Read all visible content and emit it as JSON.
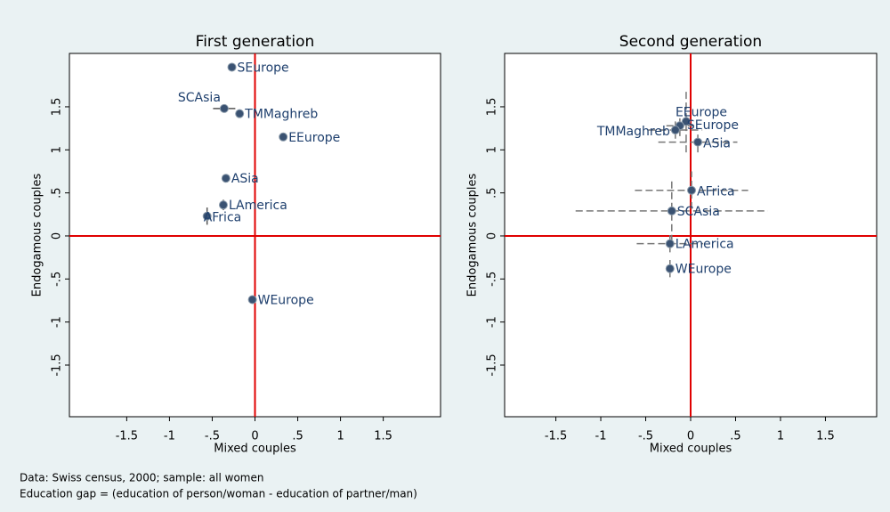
{
  "chart_data": [
    {
      "type": "scatter",
      "title": "First generation",
      "xlabel": "Mixed couples",
      "ylabel": "Endogamous couples",
      "xlim": [
        -2.17,
        2.17
      ],
      "ylim": [
        -2.1,
        2.12
      ],
      "xticks": [
        -1.5,
        -1,
        {
          "value": -0.5,
          "label": "-.5"
        },
        0,
        {
          "value": 0.5,
          "label": ".5"
        },
        1,
        1.5
      ],
      "yticks": [
        -1.5,
        -1,
        {
          "value": -0.5,
          "label": "-.5"
        },
        0,
        {
          "value": 0.5,
          "label": ".5"
        },
        1,
        1.5
      ],
      "reference_lines": {
        "x": 0,
        "y": 0,
        "color": "#e00000"
      },
      "series": [
        {
          "name": null,
          "color": "#3a5272",
          "labels": [
            "SEurope",
            "SCAsia",
            "TMMaghreb",
            "EEurope",
            "ASia",
            "LAmerica",
            "AFrica",
            "WEurope"
          ],
          "x": [
            -0.27,
            -0.36,
            -0.18,
            0.33,
            -0.34,
            -0.37,
            -0.56,
            -0.03
          ],
          "values": [
            1.96,
            1.48,
            1.42,
            1.15,
            0.67,
            0.36,
            0.23,
            -0.74
          ],
          "xerr": [
            null,
            0.13,
            null,
            null,
            null,
            null,
            null,
            null
          ],
          "yerr": [
            null,
            null,
            null,
            null,
            null,
            0.06,
            0.1,
            null
          ]
        }
      ]
    },
    {
      "type": "scatter",
      "title": "Second generation",
      "xlabel": "Mixed couples",
      "ylabel": "Endogamous couples",
      "xlim": [
        -2.07,
        2.07
      ],
      "ylim": [
        -2.1,
        2.12
      ],
      "xticks": [
        -1.5,
        -1,
        {
          "value": -0.5,
          "label": "-.5"
        },
        0,
        {
          "value": 0.5,
          "label": ".5"
        },
        1,
        1.5
      ],
      "yticks": [
        -1.5,
        -1,
        {
          "value": -0.5,
          "label": "-.5"
        },
        0,
        {
          "value": 0.5,
          "label": ".5"
        },
        1,
        1.5
      ],
      "reference_lines": {
        "x": 0,
        "y": 0,
        "color": "#e00000"
      },
      "series": [
        {
          "name": null,
          "color": "#3a5272",
          "labels": [
            "EEurope",
            "SEurope",
            "TMMaghreb",
            "ASia",
            "AFrica",
            "SCAsia",
            "LAmerica",
            "WEurope"
          ],
          "x": [
            -0.05,
            -0.12,
            -0.17,
            0.08,
            0.01,
            -0.21,
            -0.23,
            -0.23
          ],
          "values": [
            1.33,
            1.28,
            1.23,
            1.09,
            0.53,
            0.29,
            -0.09,
            -0.38
          ],
          "xerr": [
            null,
            0.15,
            0.3,
            0.44,
            0.63,
            1.07,
            0.37,
            null
          ],
          "yerr": [
            0.36,
            0.12,
            0.1,
            0.12,
            0.22,
            0.36,
            0.1,
            0.1
          ]
        }
      ]
    }
  ],
  "notes": [
    "Data: Swiss census, 2000; sample: all women",
    "Education gap = (education of person/woman - education of partner/man)"
  ]
}
